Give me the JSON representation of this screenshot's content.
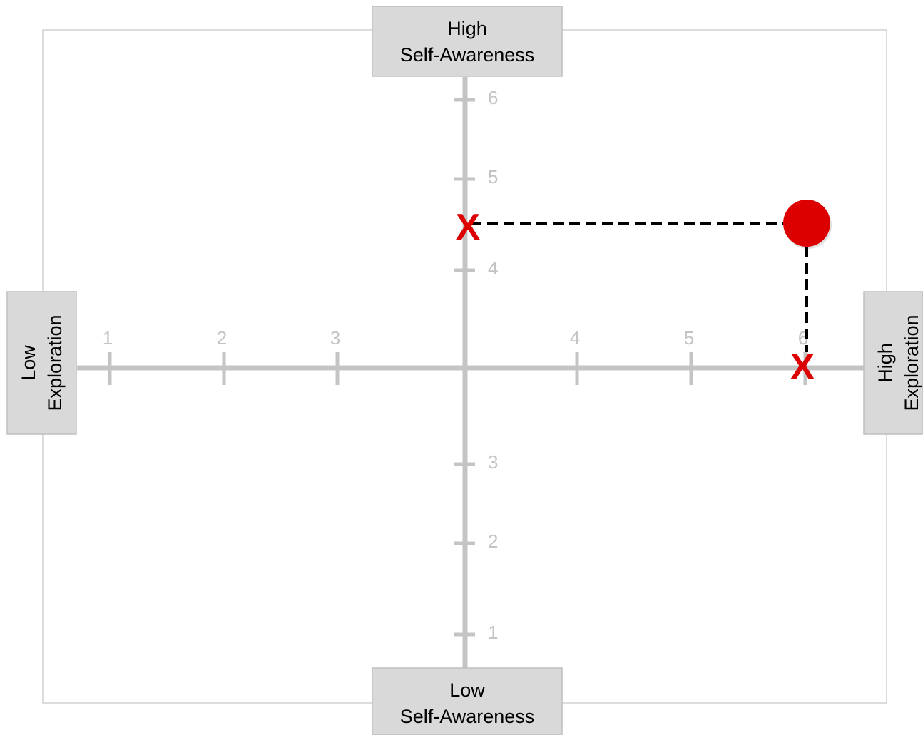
{
  "diagram": {
    "labels": {
      "top": [
        "High",
        "Self-Awareness"
      ],
      "bottom": [
        "Low",
        "Self-Awareness"
      ],
      "left": [
        "Low",
        "Exploration"
      ],
      "right": [
        "High",
        "Exploration"
      ]
    },
    "x_axis": {
      "left_ticks": [
        "1",
        "2",
        "3"
      ],
      "right_ticks": [
        "4",
        "5",
        "6"
      ]
    },
    "y_axis": {
      "upper_ticks": [
        "4",
        "5",
        "6"
      ],
      "lower_ticks": [
        "3",
        "2",
        "1"
      ]
    },
    "point": {
      "exploration": 6,
      "self_awareness": 4.5
    },
    "markers": {
      "x_symbol": "X"
    },
    "colors": {
      "axis": "#c4c4c4",
      "tick_label": "#c4c4c4",
      "label_box_fill": "#d9d9d9",
      "label_box_border": "#bfbfbf",
      "frame": "#d0d0d0",
      "point": "#dd0000",
      "marker": "#dd0000",
      "guide": "#000000"
    }
  }
}
